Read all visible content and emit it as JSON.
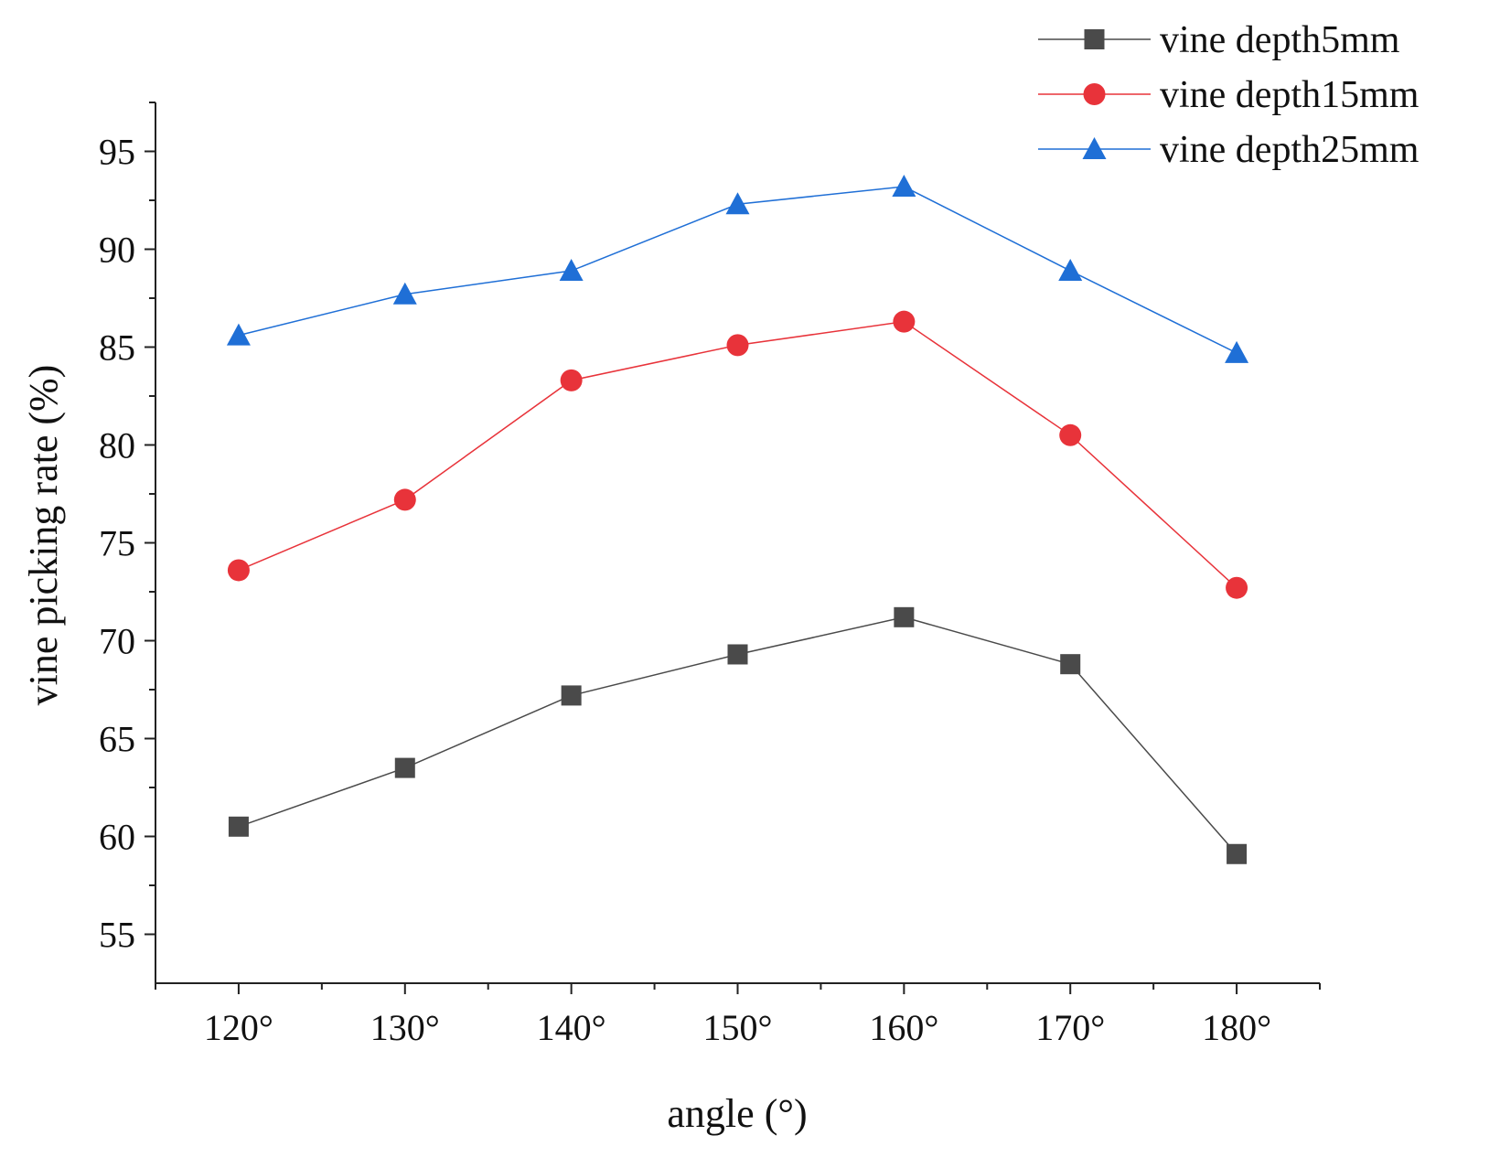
{
  "chart_data": {
    "type": "line",
    "title": "",
    "xlabel": "angle (°)",
    "ylabel": "vine picking rate (%)",
    "categories": [
      "120°",
      "130°",
      "140°",
      "150°",
      "160°",
      "170°",
      "180°"
    ],
    "x": [
      120,
      130,
      140,
      150,
      160,
      170,
      180
    ],
    "xlim": [
      115,
      185
    ],
    "ylim": [
      52.5,
      97.5
    ],
    "yticks": [
      55,
      60,
      65,
      70,
      75,
      80,
      85,
      90,
      95
    ],
    "grid": false,
    "legend_position": "top-right",
    "series": [
      {
        "name": "vine depth5mm",
        "marker": "square",
        "color": "#4a4a4a",
        "values": [
          60.5,
          63.5,
          67.2,
          69.3,
          71.2,
          68.8,
          59.1
        ]
      },
      {
        "name": "vine depth15mm",
        "marker": "circle",
        "color": "#e8333a",
        "values": [
          73.6,
          77.2,
          83.3,
          85.1,
          86.3,
          80.5,
          72.7
        ]
      },
      {
        "name": "vine depth25mm",
        "marker": "triangle",
        "color": "#1f6fd6",
        "values": [
          85.6,
          87.7,
          88.9,
          92.3,
          93.2,
          88.9,
          84.7
        ]
      }
    ]
  }
}
